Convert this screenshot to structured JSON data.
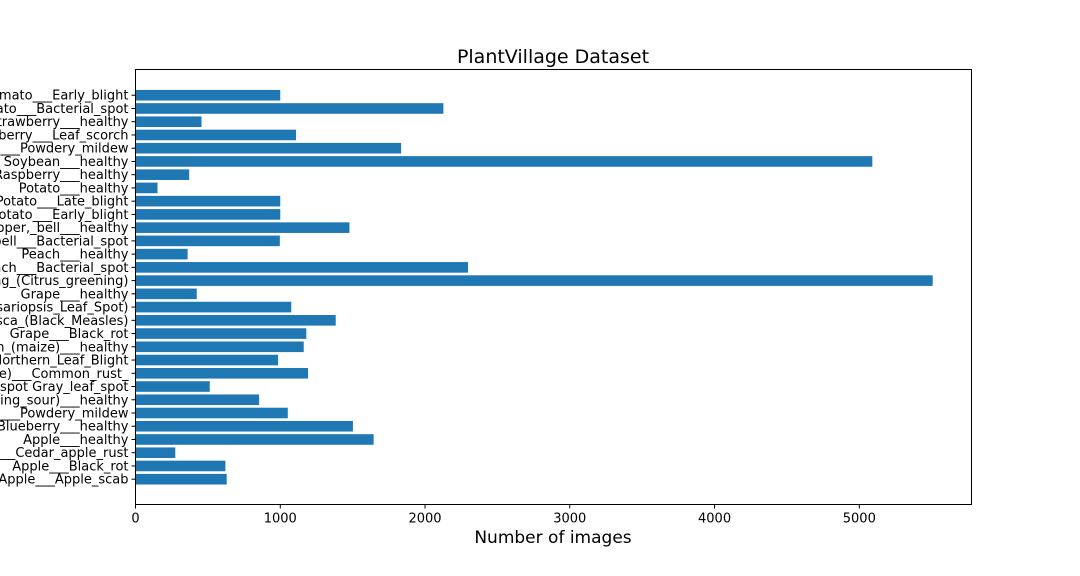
{
  "chart_data": {
    "type": "bar",
    "orientation": "horizontal",
    "title": "PlantVillage Dataset",
    "xlabel": "Number of images",
    "ylabel": "",
    "xlim": [
      0,
      5775
    ],
    "xticks": [
      0,
      1000,
      2000,
      3000,
      4000,
      5000
    ],
    "grid": false,
    "legend": "none",
    "bar_color": "#1f77b4",
    "categories": [
      "Apple___Apple_scab",
      "Apple___Black_rot",
      "Apple___Cedar_apple_rust",
      "Apple___healthy",
      "Blueberry___healthy",
      "Cherry_(including_sour)___Powdery_mildew",
      "Cherry_(including_sour)___healthy",
      "Corn_(maize)___Cercospora_leaf_spot Gray_leaf_spot",
      "Corn_(maize)___Common_rust_",
      "Corn_(maize)___Northern_Leaf_Blight",
      "Corn_(maize)___healthy",
      "Grape___Black_rot",
      "Grape___Esca_(Black_Measles)",
      "Grape___Leaf_blight_(Isariopsis_Leaf_Spot)",
      "Grape___healthy",
      "Orange___Haunglongbing_(Citrus_greening)",
      "Peach___Bacterial_spot",
      "Peach___healthy",
      "Pepper,_bell___Bacterial_spot",
      "Pepper,_bell___healthy",
      "Potato___Early_blight",
      "Potato___Late_blight",
      "Potato___healthy",
      "Raspberry___healthy",
      "Soybean___healthy",
      "Squash___Powdery_mildew",
      "Strawberry___Leaf_scorch",
      "Strawberry___healthy",
      "Tomato___Bacterial_spot",
      "Tomato___Early_blight"
    ],
    "values": [
      630,
      621,
      275,
      1645,
      1502,
      1052,
      854,
      513,
      1192,
      985,
      1162,
      1180,
      1383,
      1076,
      423,
      5507,
      2297,
      360,
      997,
      1478,
      1000,
      1000,
      152,
      371,
      5090,
      1835,
      1109,
      456,
      2127,
      1000
    ]
  }
}
